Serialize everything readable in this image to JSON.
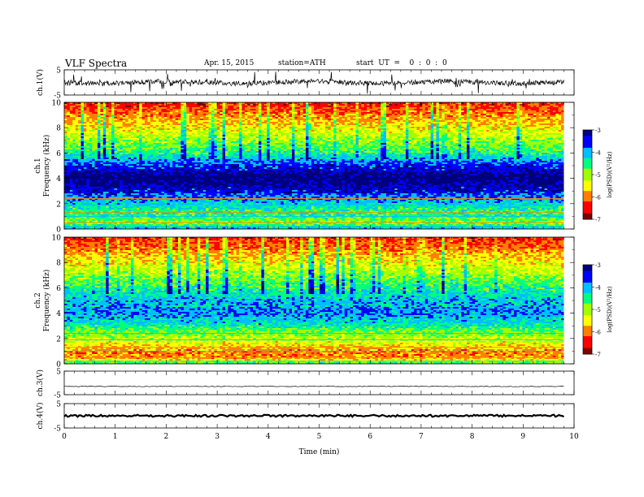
{
  "header": {
    "title": "VLF  Spectra",
    "date": "Apr. 15, 2015",
    "station": "station=ATH",
    "start_ut": "start  UT  =    0  :  0  :  0"
  },
  "colors": {
    "spectrogram_scale": [
      "#00007f",
      "#0000ff",
      "#00bfff",
      "#00ff7f",
      "#9fff00",
      "#ffff00",
      "#ff7f00",
      "#ff0000",
      "#7f0000"
    ]
  },
  "chart_data": [
    {
      "type": "line",
      "name": "ch1-waveform",
      "ylabel": "ch.1(V)",
      "ylim": [
        -5,
        5
      ],
      "yticks": [
        "5",
        "-5"
      ],
      "xlim": [
        0,
        10
      ],
      "x_extent": [
        0,
        9.8
      ],
      "trace_level": 0,
      "note_trace": "dense noisy waveform around 0 V"
    },
    {
      "type": "heatmap",
      "name": "ch1-spectrogram",
      "ylabel": "Frequency  (kHz)",
      "channel_label": "ch.1",
      "ylim": [
        0,
        10
      ],
      "yticks": [
        "0",
        "2",
        "4",
        "6",
        "8",
        "10"
      ],
      "xlim": [
        0,
        10
      ],
      "x_extent": [
        0,
        9.8
      ],
      "profile_khz_to_color_index": [
        [
          0,
          2
        ],
        [
          0.5,
          4
        ],
        [
          1.0,
          3
        ],
        [
          1.5,
          3
        ],
        [
          2.2,
          2
        ],
        [
          3.0,
          1
        ],
        [
          4.0,
          0
        ],
        [
          5.0,
          1
        ],
        [
          6.0,
          3
        ],
        [
          7.0,
          4
        ],
        [
          8.0,
          5
        ],
        [
          9.0,
          6
        ],
        [
          10.0,
          7
        ]
      ],
      "colorbar": {
        "label": "log(PSD)(V²/Hz)",
        "ticks": [
          "-3",
          "-4",
          "-5",
          "-6",
          "-7"
        ],
        "range": [
          -7,
          -3
        ]
      }
    },
    {
      "type": "heatmap",
      "name": "ch2-spectrogram",
      "ylabel": "Frequency  (kHz)",
      "channel_label": "ch.2",
      "ylim": [
        0,
        10
      ],
      "yticks": [
        "0",
        "2",
        "4",
        "6",
        "8",
        "10"
      ],
      "xlim": [
        0,
        10
      ],
      "x_extent": [
        0,
        9.8
      ],
      "profile_khz_to_color_index": [
        [
          0,
          3
        ],
        [
          0.5,
          6
        ],
        [
          1.0,
          6
        ],
        [
          1.5,
          5
        ],
        [
          2.2,
          4
        ],
        [
          3.0,
          3
        ],
        [
          4.0,
          2
        ],
        [
          5.0,
          2
        ],
        [
          6.0,
          3
        ],
        [
          7.0,
          4
        ],
        [
          8.0,
          5
        ],
        [
          9.0,
          6
        ],
        [
          10.0,
          7
        ]
      ],
      "colorbar": {
        "label": "log(PSD)(V²/Hz)",
        "ticks": [
          "-3",
          "-4",
          "-5",
          "-6",
          "-7"
        ],
        "range": [
          -7,
          -3
        ]
      }
    },
    {
      "type": "line",
      "name": "ch3-waveform",
      "ylabel": "ch.3(V)",
      "ylim": [
        -5,
        5
      ],
      "yticks": [
        "5",
        "-5"
      ],
      "xlim": [
        0,
        10
      ],
      "x_extent": [
        0,
        9.8
      ],
      "trace_level": -1.5
    },
    {
      "type": "line",
      "name": "ch4-waveform",
      "ylabel": "ch.4(V)",
      "ylim": [
        -5,
        5
      ],
      "yticks": [
        "5",
        "-5"
      ],
      "xlim": [
        0,
        10
      ],
      "x_extent": [
        0,
        9.8
      ],
      "trace_level": 0
    }
  ],
  "x_axis": {
    "label": "Time  (min)",
    "ticks": [
      "0",
      "1",
      "2",
      "3",
      "4",
      "5",
      "6",
      "7",
      "8",
      "9",
      "10"
    ]
  }
}
